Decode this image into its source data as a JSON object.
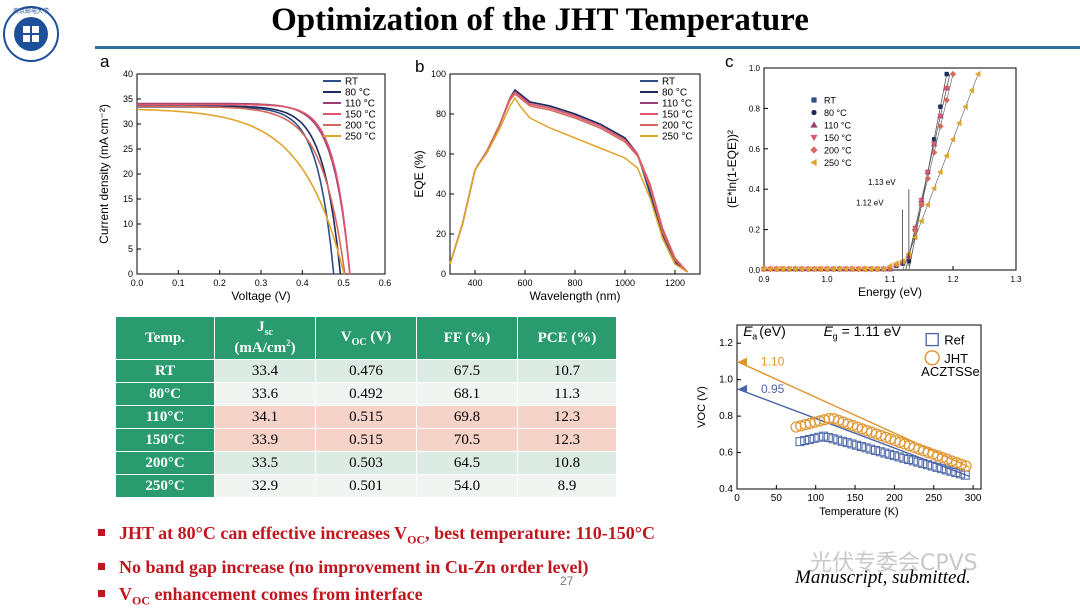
{
  "title": "Optimization of the JHT Temperature",
  "page_number": "27",
  "footer_note": "Manuscript, submitted.",
  "watermark": "光伏专委会CPVS",
  "logo_text": "南京邮电大学",
  "panel_labels": {
    "a": "a",
    "b": "b",
    "c": "c"
  },
  "colors": {
    "rt": "#2d4f86",
    "c80": "#1d2a5e",
    "c110": "#9a3f74",
    "c150": "#e0566e",
    "c200": "#d46a5c",
    "c250": "#e0a52c",
    "accent": "#2e6e98",
    "table_green": "#2a9a6f",
    "red_text": "#c0161e"
  },
  "table": {
    "headers": [
      "Temp.",
      "Jsc (mA/cm²)",
      "VOC (V)",
      "FF (%)",
      "PCE (%)"
    ],
    "header_parts": {
      "jsc_main": "J",
      "jsc_sub": "sc",
      "jsc_unit": "(mA/cm",
      "jsc_sup": "2",
      "jsc_close": ")",
      "voc_main": "V",
      "voc_sub": "OC",
      "voc_unit": "(V)"
    },
    "rows": [
      {
        "temp": "RT",
        "jsc": "33.4",
        "voc": "0.476",
        "ff": "67.5",
        "pce": "10.7"
      },
      {
        "temp": "80°C",
        "jsc": "33.6",
        "voc": "0.492",
        "ff": "68.1",
        "pce": "11.3"
      },
      {
        "temp": "110°C",
        "jsc": "34.1",
        "voc": "0.515",
        "ff": "69.8",
        "pce": "12.3"
      },
      {
        "temp": "150°C",
        "jsc": "33.9",
        "voc": "0.515",
        "ff": "70.5",
        "pce": "12.3"
      },
      {
        "temp": "200°C",
        "jsc": "33.5",
        "voc": "0.503",
        "ff": "64.5",
        "pce": "10.8"
      },
      {
        "temp": "250°C",
        "jsc": "32.9",
        "voc": "0.501",
        "ff": "54.0",
        "pce": "8.9"
      }
    ]
  },
  "bullets": {
    "b1_pre": "JHT at 80°C can effective increases V",
    "b1_sub": "OC",
    "b1_post": ", best temperature: 110-150°C",
    "b2": "No band gap increase (no improvement in Cu-Zn order level)",
    "b3_pre": "V",
    "b3_sub": "OC",
    "b3_post": " enhancement comes from interface"
  },
  "chart_data": [
    {
      "id": "a",
      "type": "line",
      "xlabel": "Voltage (V)",
      "ylabel": "Current density (mA cm⁻²)",
      "xlim": [
        0.0,
        0.6
      ],
      "ylim": [
        0,
        40
      ],
      "xticks": [
        "0.0",
        "0.1",
        "0.2",
        "0.3",
        "0.4",
        "0.5",
        "0.6"
      ],
      "yticks": [
        "0",
        "5",
        "10",
        "15",
        "20",
        "25",
        "30",
        "35",
        "40"
      ],
      "legend_position": "top-right",
      "series": [
        {
          "name": "RT",
          "jsc": 33.4,
          "voc": 0.476,
          "k": 12
        },
        {
          "name": "80 °C",
          "jsc": 33.6,
          "voc": 0.492,
          "k": 12
        },
        {
          "name": "110 °C",
          "jsc": 34.1,
          "voc": 0.515,
          "k": 13
        },
        {
          "name": "150 °C",
          "jsc": 33.9,
          "voc": 0.515,
          "k": 14
        },
        {
          "name": "200 °C",
          "jsc": 33.5,
          "voc": 0.503,
          "k": 9
        },
        {
          "name": "250 °C",
          "jsc": 32.9,
          "voc": 0.501,
          "k": 5
        }
      ]
    },
    {
      "id": "b",
      "type": "line",
      "xlabel": "Wavelength (nm)",
      "ylabel": "EQE (%)",
      "xlim": [
        300,
        1300
      ],
      "ylim": [
        0,
        100
      ],
      "xticks": [
        "400",
        "600",
        "800",
        "1000",
        "1200"
      ],
      "yticks": [
        "0",
        "20",
        "40",
        "60",
        "80",
        "100"
      ],
      "legend_position": "top-right",
      "x": [
        300,
        350,
        400,
        450,
        500,
        540,
        560,
        580,
        620,
        700,
        800,
        900,
        1000,
        1050,
        1100,
        1150,
        1200,
        1250
      ],
      "series": [
        {
          "name": "RT",
          "values": [
            5,
            25,
            52,
            62,
            75,
            88,
            92,
            90,
            86,
            84,
            80,
            75,
            68,
            60,
            40,
            18,
            5,
            1
          ]
        },
        {
          "name": "80 °C",
          "values": [
            5,
            25,
            52,
            62,
            75,
            88,
            92,
            90,
            86,
            84,
            80,
            75,
            68,
            60,
            42,
            20,
            6,
            1
          ]
        },
        {
          "name": "110 °C",
          "values": [
            5,
            25,
            52,
            62,
            75,
            88,
            91,
            89,
            85,
            83,
            79,
            74,
            67,
            60,
            44,
            22,
            7,
            1
          ]
        },
        {
          "name": "150 °C",
          "values": [
            5,
            25,
            52,
            62,
            75,
            88,
            91,
            89,
            85,
            83,
            79,
            74,
            67,
            60,
            45,
            23,
            8,
            1
          ]
        },
        {
          "name": "200 °C",
          "values": [
            5,
            25,
            52,
            62,
            75,
            87,
            90,
            88,
            84,
            82,
            78,
            73,
            66,
            59,
            43,
            21,
            7,
            1
          ]
        },
        {
          "name": "250 °C",
          "values": [
            5,
            25,
            52,
            61,
            73,
            84,
            88,
            84,
            78,
            73,
            68,
            63,
            58,
            53,
            38,
            18,
            5,
            1
          ]
        }
      ]
    },
    {
      "id": "c",
      "type": "scatter",
      "xlabel": "Energy (eV)",
      "ylabel": "(E*ln(1-EQE))²",
      "xlim": [
        0.9,
        1.3
      ],
      "ylim": [
        0.0,
        1.0
      ],
      "xticks": [
        "0.9",
        "1.0",
        "1.1",
        "1.2",
        "1.3"
      ],
      "yticks": [
        "0.0",
        "0.2",
        "0.4",
        "0.6",
        "0.8",
        "1.0"
      ],
      "annotations": [
        "1.13 eV",
        "1.12 eV"
      ],
      "legend_position": "top-left",
      "series": [
        {
          "name": "RT",
          "onset": 1.13,
          "end": 1.19,
          "marker": "square"
        },
        {
          "name": "80 °C",
          "onset": 1.13,
          "end": 1.19,
          "marker": "circle"
        },
        {
          "name": "110 °C",
          "onset": 1.125,
          "end": 1.195,
          "marker": "triangle"
        },
        {
          "name": "150 °C",
          "onset": 1.125,
          "end": 1.195,
          "marker": "triangle-down"
        },
        {
          "name": "200 °C",
          "onset": 1.125,
          "end": 1.2,
          "marker": "diamond"
        },
        {
          "name": "250 °C",
          "onset": 1.12,
          "end": 1.24,
          "marker": "triangle-left"
        }
      ]
    },
    {
      "id": "d",
      "type": "scatter",
      "xlabel": "Temperature (K)",
      "ylabel": "VOC (V)",
      "xlim": [
        0,
        310
      ],
      "ylim": [
        0.4,
        1.3
      ],
      "xticks": [
        "0",
        "50",
        "100",
        "150",
        "200",
        "250",
        "300"
      ],
      "yticks": [
        "0.4",
        "0.6",
        "0.8",
        "1.0",
        "1.2"
      ],
      "ea_label": "(eV)",
      "eg_label": "= 1.11 eV",
      "material": "ACZTSSe",
      "legend_position": "top-right",
      "series": [
        {
          "name": "Ref",
          "intercept": 0.95,
          "intercept_label": "0.95",
          "t_start": 80,
          "t_end": 295,
          "v_start": 0.66,
          "v_end": 0.47,
          "peak_t": 110,
          "peak_v": 0.69
        },
        {
          "name": "JHT",
          "intercept": 1.1,
          "intercept_label": "1.10",
          "t_start": 75,
          "t_end": 295,
          "v_start": 0.74,
          "v_end": 0.52,
          "peak_t": 120,
          "peak_v": 0.79
        }
      ]
    }
  ]
}
